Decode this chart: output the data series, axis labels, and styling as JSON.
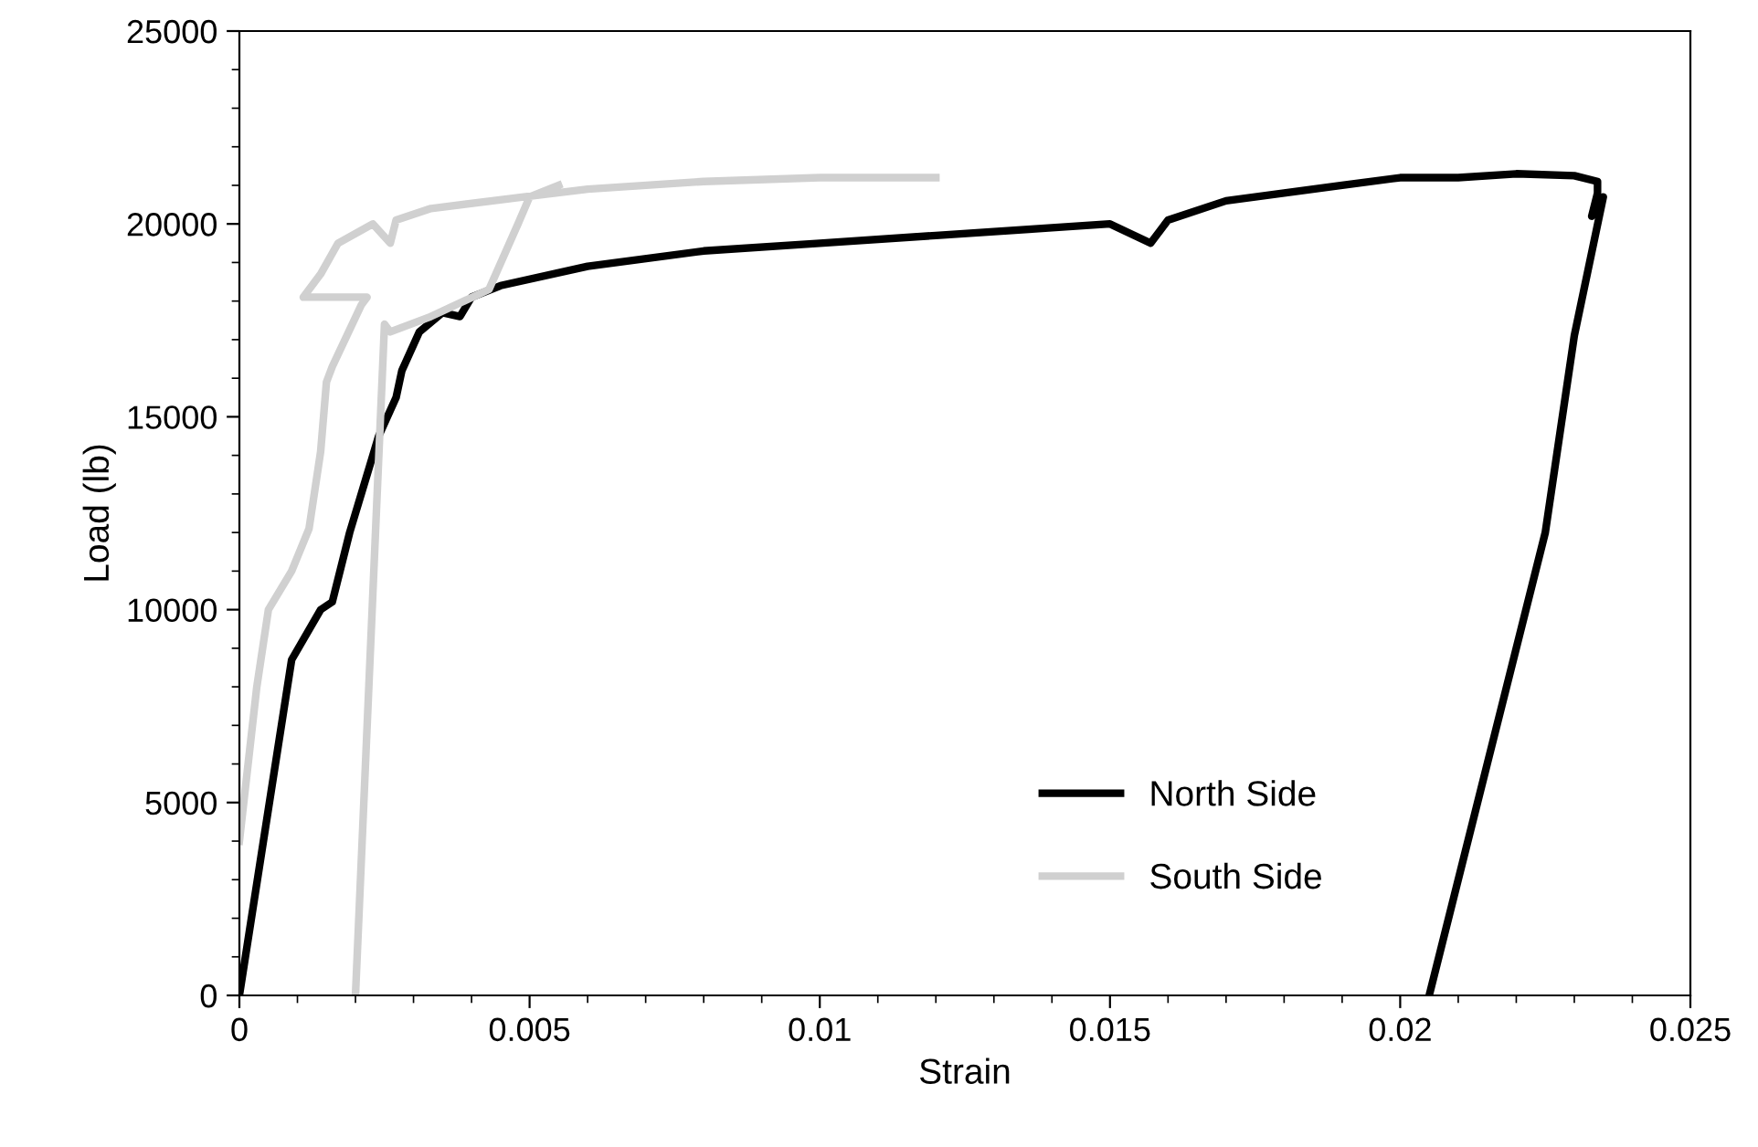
{
  "chart_data": {
    "type": "line",
    "xlabel": "Strain",
    "ylabel": "Load (lb)",
    "xlim": [
      0,
      0.025
    ],
    "ylim": [
      0,
      25000
    ],
    "xticks": [
      0,
      0.005,
      0.01,
      0.015,
      0.02,
      0.025
    ],
    "yticks": [
      0,
      5000,
      10000,
      15000,
      20000,
      25000
    ],
    "grid": false,
    "legend": "bottom",
    "marker": "none",
    "line_style": "solid",
    "series": [
      {
        "name": "North Side",
        "color": "#000000",
        "x": [
          0,
          0.0009,
          0.0014,
          0.0016,
          0.0019,
          0.0022,
          0.0024,
          0.0027,
          0.0028,
          0.0031,
          0.0035,
          0.0038,
          0.004,
          0.0045,
          0.006,
          0.008,
          0.01,
          0.012,
          0.014,
          0.015,
          0.0157,
          0.016,
          0.017,
          0.018,
          0.019,
          0.02,
          0.021,
          0.022,
          0.023,
          0.0234,
          0.0234,
          0.0233,
          0.0235,
          0.023,
          0.0225,
          0.0215,
          0.0205
        ],
        "values": [
          0,
          8700,
          10000,
          10200,
          12000,
          13500,
          14500,
          15500,
          16200,
          17200,
          17700,
          17600,
          18100,
          18400,
          18900,
          19300,
          19500,
          19700,
          19900,
          20000,
          19500,
          20100,
          20600,
          20800,
          21000,
          21200,
          21200,
          21300,
          21250,
          21100,
          20800,
          20200,
          20700,
          17100,
          12000,
          6000,
          0
        ]
      },
      {
        "name": "South Side",
        "color": "#d0d0d0",
        "x": [
          0,
          0.0003,
          0.0005,
          0.0009,
          0.0012,
          0.0014,
          0.0015,
          0.0016,
          0.0021,
          0.0022,
          0.0011,
          0.0014,
          0.0017,
          0.0023,
          0.0026,
          0.0027,
          0.0033,
          0.0049,
          0.006,
          0.008,
          0.01,
          0.012,
          null,
          0.002,
          0.0025,
          0.0026,
          0.0033,
          0.0043,
          0.0048,
          0.005,
          0.0055
        ],
        "values": [
          4000,
          8000,
          10000,
          11000,
          12100,
          14100,
          15900,
          16300,
          17900,
          18100,
          18100,
          18700,
          19500,
          20000,
          19500,
          20100,
          20400,
          20700,
          20900,
          21100,
          21200,
          21200,
          null,
          0,
          17400,
          17200,
          17600,
          18300,
          20000,
          20700,
          21000
        ]
      }
    ]
  }
}
